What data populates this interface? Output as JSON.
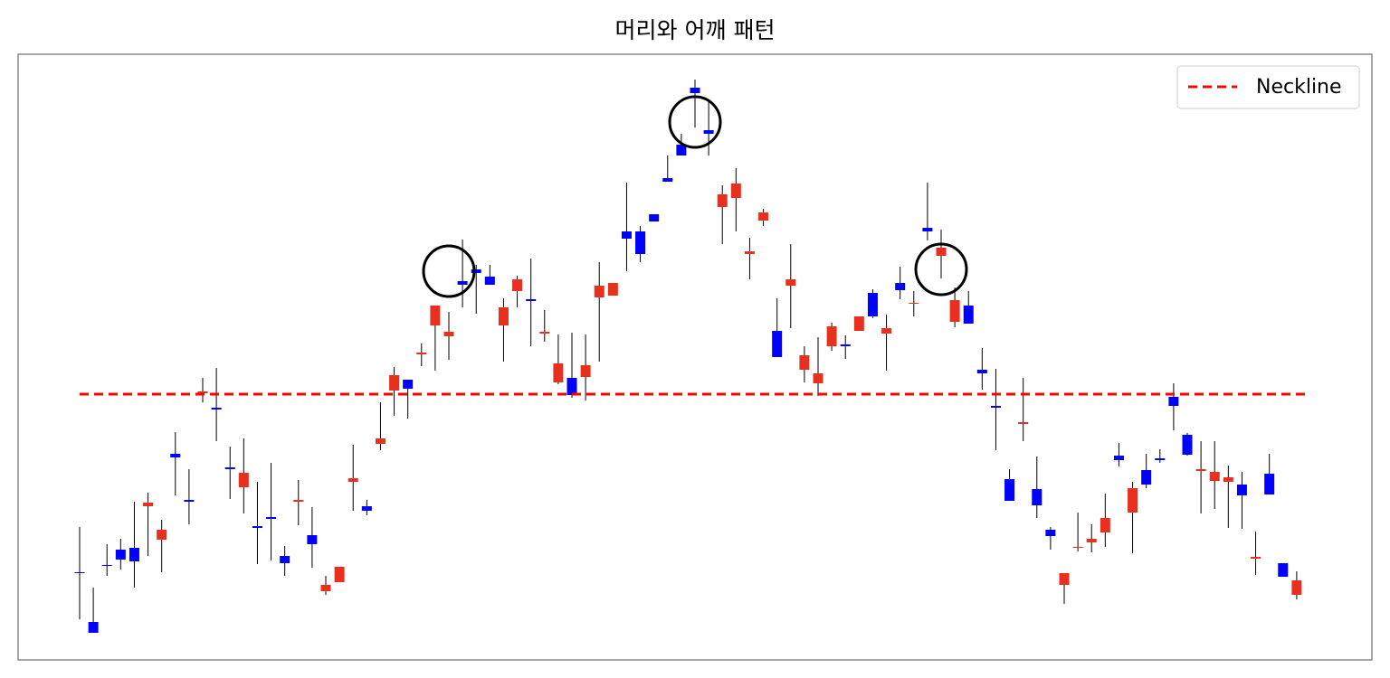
{
  "chart_data": {
    "type": "candlestick",
    "title": "머리와 어깨 패턴",
    "x": [
      0,
      1,
      2,
      3,
      4,
      5,
      6,
      7,
      8,
      9,
      10,
      11,
      12,
      13,
      14,
      15,
      16,
      17,
      18,
      19,
      20,
      21,
      22,
      23,
      24,
      25,
      26,
      27,
      28,
      29,
      30,
      31,
      32,
      33,
      34,
      35,
      36,
      37,
      38,
      39,
      40,
      41,
      42,
      43,
      44,
      45,
      46,
      47,
      48,
      49,
      50,
      51,
      52,
      53,
      54,
      55,
      56,
      57,
      58,
      59,
      60,
      61,
      62,
      63,
      64,
      65,
      66,
      67,
      68,
      69,
      70,
      71,
      72,
      73,
      74,
      75,
      76,
      77,
      78,
      79,
      80,
      81,
      82,
      83,
      84,
      85,
      86,
      87,
      88,
      89
    ],
    "open": [
      97,
      30,
      105,
      111,
      109,
      174,
      144,
      224,
      175,
      297,
      277,
      211,
      207,
      146,
      156,
      107,
      177,
      128,
      83,
      103,
      201,
      165,
      245,
      315,
      300,
      340,
      392,
      363,
      415,
      428,
      415,
      390,
      421,
      397,
      363,
      328,
      293,
      326,
      414,
      417,
      466,
      449,
      485,
      529,
      558,
      627,
      582,
      515,
      527,
      452,
      495,
      335,
      421,
      337,
      317,
      369,
      347,
      380,
      380,
      367,
      409,
      395,
      474,
      456,
      398,
      372,
      317,
      279,
      176,
      263,
      171,
      137,
      96,
      125,
      134,
      157,
      221,
      190,
      194,
      221,
      281,
      227,
      211,
      208,
      202,
      182,
      114,
      183,
      92,
      88
    ],
    "high": [
      147,
      80,
      128,
      134,
      175,
      185,
      155,
      252,
      211,
      312,
      323,
      236,
      245,
      197,
      218,
      126,
      199,
      169,
      93,
      103,
      238,
      177,
      285,
      324,
      310,
      350,
      392,
      385,
      465,
      437,
      437,
      400,
      425,
      444,
      387,
      360,
      362,
      360,
      440,
      417,
      528,
      480,
      493,
      558,
      582,
      642,
      620,
      525,
      544,
      467,
      499,
      400,
      460,
      347,
      357,
      373,
      359,
      380,
      410,
      382,
      435,
      408,
      528,
      476,
      412,
      408,
      345,
      322,
      211,
      312,
      225,
      147,
      96,
      163,
      150,
      184,
      240,
      197,
      228,
      233,
      306,
      251,
      242,
      242,
      215,
      208,
      142,
      228,
      107,
      98
    ],
    "low": [
      45,
      30,
      93,
      100,
      80,
      115,
      97,
      182,
      150,
      285,
      242,
      178,
      162,
      106,
      110,
      93,
      149,
      102,
      72,
      86,
      165,
      160,
      232,
      270,
      267,
      325,
      320,
      332,
      390,
      383,
      415,
      330,
      390,
      347,
      352,
      305,
      290,
      287,
      330,
      403,
      430,
      440,
      485,
      529,
      558,
      589,
      558,
      460,
      474,
      421,
      480,
      335,
      367,
      307,
      292,
      342,
      333,
      364,
      378,
      320,
      399,
      380,
      464,
      422,
      368,
      372,
      299,
      232,
      176,
      242,
      157,
      122,
      62,
      120,
      119,
      125,
      214,
      118,
      190,
      218,
      254,
      226,
      162,
      167,
      146,
      145,
      94,
      183,
      92,
      67
    ],
    "close": [
      97,
      42,
      105,
      122,
      124,
      170,
      133,
      228,
      177,
      295,
      279,
      213,
      191,
      148,
      158,
      115,
      175,
      138,
      76,
      86,
      197,
      170,
      239,
      298,
      310,
      338,
      370,
      358,
      419,
      432,
      424,
      370,
      408,
      399,
      361,
      307,
      312,
      313,
      401,
      403,
      474,
      474,
      493,
      533,
      570,
      633,
      586,
      501,
      511,
      449,
      486,
      364,
      414,
      321,
      306,
      347,
      349,
      364,
      406,
      361,
      417,
      394,
      478,
      447,
      374,
      392,
      321,
      281,
      200,
      261,
      189,
      144,
      83,
      124,
      130,
      141,
      226,
      163,
      210,
      223,
      291,
      249,
      209,
      198,
      197,
      194,
      112,
      206,
      107,
      72
    ],
    "up_color": "#0000ff",
    "down_color": "#e8301e",
    "xlim": [
      -4.5,
      94.5
    ],
    "ylim": [
      0,
      670
    ],
    "neckline": {
      "name": "Neckline",
      "value": 294,
      "x": [
        0,
        90
      ],
      "color": "#ff0000"
    },
    "markers": {
      "x": [
        27,
        45,
        63
      ],
      "values": [
        430,
        595,
        432
      ]
    },
    "legend": "upper right"
  }
}
